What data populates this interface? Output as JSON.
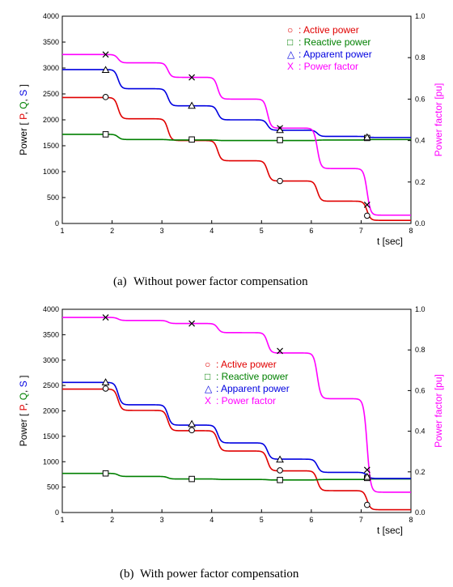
{
  "colors": {
    "active": "#e00000",
    "reactive": "#008000",
    "apparent": "#0000e0",
    "pf": "#ff00ff",
    "axis": "#000000"
  },
  "chart_data": [
    {
      "type": "line",
      "caption_id": "(a)",
      "caption_text": "Without  power  factor  compensation",
      "xlabel": "t [sec]",
      "ylabel_parts": [
        "Power [ ",
        "P",
        ", ",
        "Q",
        ", ",
        "S",
        " ]"
      ],
      "y2label": "Power factor [pu]",
      "xlim": [
        1,
        8
      ],
      "ylim": [
        0,
        4000
      ],
      "y2lim": [
        0,
        1.0
      ],
      "xticks": [
        1,
        2,
        3,
        4,
        5,
        6,
        7,
        8
      ],
      "yticks": [
        0,
        500,
        1000,
        1500,
        2000,
        2500,
        3000,
        3500,
        4000
      ],
      "y2ticks": [
        0.0,
        0.2,
        0.4,
        0.6,
        0.8,
        1.0
      ],
      "legend": [
        {
          "symbol": "○",
          "label": ": Active power",
          "color": "#e00000"
        },
        {
          "symbol": "□",
          "label": ": Reactive power",
          "color": "#008000"
        },
        {
          "symbol": "△",
          "label": ": Apparent power",
          "color": "#0000e0"
        },
        {
          "symbol": "X",
          "label": ": Power factor",
          "color": "#ff00ff"
        }
      ],
      "series": [
        {
          "key": "active",
          "marker": "circle",
          "axis": "left",
          "levels": [
            2430,
            2020,
            1600,
            1210,
            820,
            430,
            60
          ],
          "markers": [
            [
              1.87,
              2440
            ],
            [
              3.6,
              1620
            ],
            [
              5.37,
              820
            ],
            [
              7.12,
              150
            ]
          ]
        },
        {
          "key": "reactive",
          "marker": "square",
          "axis": "left",
          "levels": [
            1720,
            1620,
            1610,
            1600,
            1600,
            1610,
            1620
          ],
          "markers": [
            [
              1.87,
              1720
            ],
            [
              3.6,
              1620
            ],
            [
              5.37,
              1610
            ],
            [
              7.12,
              1650
            ]
          ]
        },
        {
          "key": "apparent",
          "marker": "triangle",
          "axis": "left",
          "levels": [
            2970,
            2600,
            2270,
            2000,
            1800,
            1680,
            1660
          ],
          "markers": [
            [
              1.87,
              2960
            ],
            [
              3.6,
              2270
            ],
            [
              5.37,
              1800
            ],
            [
              7.12,
              1660
            ]
          ]
        },
        {
          "key": "pf",
          "marker": "x",
          "axis": "right",
          "levels": [
            0.815,
            0.775,
            0.705,
            0.6,
            0.46,
            0.265,
            0.04
          ],
          "markers": [
            [
              1.87,
              0.815
            ],
            [
              3.6,
              0.705
            ],
            [
              5.37,
              0.46
            ],
            [
              7.12,
              0.09
            ]
          ]
        }
      ]
    },
    {
      "type": "line",
      "caption_id": "(b)",
      "caption_text": "With  power  factor  compensation",
      "xlabel": "t [sec]",
      "ylabel_parts": [
        "Power [ ",
        "P",
        ", ",
        "Q",
        ", ",
        "S",
        " ]"
      ],
      "y2label": "Power factor [pu]",
      "xlim": [
        1,
        8
      ],
      "ylim": [
        0,
        4000
      ],
      "y2lim": [
        0,
        1.0
      ],
      "xticks": [
        1,
        2,
        3,
        4,
        5,
        6,
        7,
        8
      ],
      "yticks": [
        0,
        500,
        1000,
        1500,
        2000,
        2500,
        3000,
        3500,
        4000
      ],
      "y2ticks": [
        0.0,
        0.2,
        0.4,
        0.6,
        0.8,
        1.0
      ],
      "legend": [
        {
          "symbol": "○",
          "label": ": Active power",
          "color": "#e00000"
        },
        {
          "symbol": "□",
          "label": ": Reactive power",
          "color": "#008000"
        },
        {
          "symbol": "△",
          "label": ": Apparent power",
          "color": "#0000e0"
        },
        {
          "symbol": "X",
          "label": ": Power factor",
          "color": "#ff00ff"
        }
      ],
      "series": [
        {
          "key": "active",
          "marker": "circle",
          "axis": "left",
          "levels": [
            2430,
            2010,
            1610,
            1210,
            820,
            430,
            55
          ],
          "markers": [
            [
              1.87,
              2440
            ],
            [
              3.6,
              1620
            ],
            [
              5.37,
              830
            ],
            [
              7.12,
              150
            ]
          ]
        },
        {
          "key": "reactive",
          "marker": "square",
          "axis": "left",
          "levels": [
            770,
            710,
            660,
            650,
            640,
            650,
            660
          ],
          "markers": [
            [
              1.87,
              770
            ],
            [
              3.6,
              660
            ],
            [
              5.37,
              640
            ],
            [
              7.12,
              680
            ]
          ]
        },
        {
          "key": "apparent",
          "marker": "triangle",
          "axis": "left",
          "levels": [
            2560,
            2120,
            1720,
            1370,
            1050,
            790,
            670
          ],
          "markers": [
            [
              1.87,
              2560
            ],
            [
              3.6,
              1740
            ],
            [
              5.37,
              1040
            ],
            [
              7.12,
              700
            ]
          ]
        },
        {
          "key": "pf",
          "marker": "x",
          "axis": "right",
          "levels": [
            0.96,
            0.945,
            0.93,
            0.885,
            0.785,
            0.56,
            0.1
          ],
          "markers": [
            [
              1.87,
              0.96
            ],
            [
              3.6,
              0.93
            ],
            [
              5.37,
              0.795
            ],
            [
              7.12,
              0.21
            ]
          ]
        }
      ]
    }
  ]
}
